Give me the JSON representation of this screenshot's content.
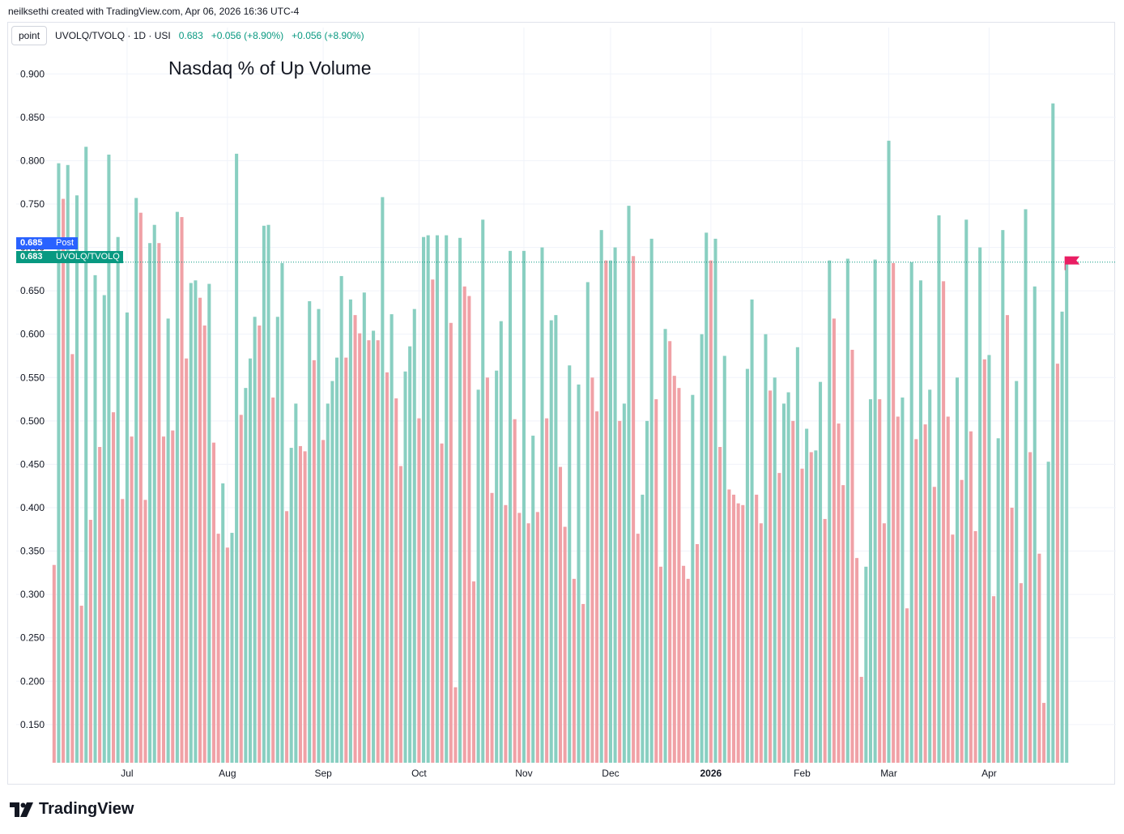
{
  "caption": "neilksethi created with TradingView.com, Apr 06, 2026 16:36 UTC-4",
  "header": {
    "mode_button": "point",
    "symbol": "UVOLQ/TVOLQ · 1D · USI",
    "last": "0.683",
    "change1": "+0.056 (+8.90%)",
    "change2": "+0.056 (+8.90%)"
  },
  "tags": {
    "post_value": "0.685",
    "post_label": "Post",
    "last_value": "0.683",
    "last_label": "UVOLQ/TVOLQ"
  },
  "logo_text": "TradingView",
  "colors": {
    "up": "#89cfc1",
    "down": "#f0a1a6",
    "flag": "#e91e63",
    "post": "#2962ff",
    "last": "#089981"
  },
  "chart_data": {
    "type": "bar",
    "title": "Nasdaq % of Up Volume",
    "xlabel": "",
    "ylabel": "",
    "ylim": [
      0.106,
      0.918
    ],
    "y_ticks": [
      "0.900",
      "0.850",
      "0.800",
      "0.750",
      "0.700",
      "0.650",
      "0.600",
      "0.550",
      "0.500",
      "0.450",
      "0.400",
      "0.350",
      "0.300",
      "0.250",
      "0.200",
      "0.150"
    ],
    "x_ticks": [
      {
        "label": "Jul",
        "index": 16
      },
      {
        "label": "Aug",
        "index": 38
      },
      {
        "label": "Sep",
        "index": 59
      },
      {
        "label": "Oct",
        "index": 80
      },
      {
        "label": "Nov",
        "index": 103
      },
      {
        "label": "Dec",
        "index": 122
      },
      {
        "label": "2026",
        "index": 144,
        "bold": true
      },
      {
        "label": "Feb",
        "index": 164
      },
      {
        "label": "Mar",
        "index": 183
      },
      {
        "label": "Apr",
        "index": 205
      }
    ],
    "series": [
      {
        "name": "UVOLQ/TVOLQ",
        "values": [
          0.334,
          0.797,
          0.756,
          0.795,
          0.577,
          0.76,
          0.287,
          0.816,
          0.386,
          0.668,
          0.47,
          0.645,
          0.807,
          0.51,
          0.712,
          0.41,
          0.625,
          0.482,
          0.757,
          0.74,
          0.409,
          0.705,
          0.726,
          0.705,
          0.482,
          0.618,
          0.489,
          0.741,
          0.735,
          0.572,
          0.659,
          0.662,
          0.642,
          0.61,
          0.658,
          0.475,
          0.37,
          0.428,
          0.354,
          0.371,
          0.808,
          0.507,
          0.538,
          0.572,
          0.62,
          0.61,
          0.725,
          0.726,
          0.527,
          0.62,
          0.682,
          0.396,
          0.469,
          0.52,
          0.471,
          0.465,
          0.638,
          0.57,
          0.629,
          0.478,
          0.52,
          0.546,
          0.573,
          0.667,
          0.573,
          0.64,
          0.622,
          0.601,
          0.648,
          0.593,
          0.604,
          0.593,
          0.758,
          0.556,
          0.623,
          0.526,
          0.448,
          0.557,
          0.586,
          0.629,
          0.503,
          0.712,
          0.714,
          0.663,
          0.714,
          0.474,
          0.714,
          0.613,
          0.193,
          0.711,
          0.655,
          0.644,
          0.315,
          0.536,
          0.732,
          0.55,
          0.417,
          0.558,
          0.615,
          0.403,
          0.696,
          0.502,
          0.394,
          0.696,
          0.382,
          0.483,
          0.395,
          0.7,
          0.503,
          0.616,
          0.622,
          0.447,
          0.378,
          0.564,
          0.318,
          0.542,
          0.289,
          0.66,
          0.55,
          0.511,
          0.72,
          0.685,
          0.685,
          0.7,
          0.5,
          0.52,
          0.748,
          0.69,
          0.37,
          0.415,
          0.5,
          0.71,
          0.525,
          0.332,
          0.606,
          0.592,
          0.552,
          0.538,
          0.333,
          0.318,
          0.53,
          0.358,
          0.6,
          0.717,
          0.685,
          0.71,
          0.47,
          0.575,
          0.421,
          0.415,
          0.405,
          0.403,
          0.56,
          0.64,
          0.415,
          0.382,
          0.6,
          0.535,
          0.55,
          0.44,
          0.52,
          0.533,
          0.5,
          0.585,
          0.445,
          0.491,
          0.464,
          0.466,
          0.545,
          0.387,
          0.685,
          0.618,
          0.497,
          0.426,
          0.687,
          0.582,
          0.342,
          0.205,
          0.332,
          0.525,
          0.686,
          0.525,
          0.382,
          0.823,
          0.682,
          0.505,
          0.527,
          0.284,
          0.683,
          0.479,
          0.662,
          0.496,
          0.536,
          0.424,
          0.737,
          0.661,
          0.505,
          0.369,
          0.55,
          0.432,
          0.732,
          0.488,
          0.373,
          0.7,
          0.571,
          0.576,
          0.298,
          0.48,
          0.72,
          0.622,
          0.4,
          0.546,
          0.313,
          0.744,
          0.464,
          0.655,
          0.347,
          0.175,
          0.453,
          0.866,
          0.566,
          0.626,
          0.683
        ]
      }
    ]
  }
}
